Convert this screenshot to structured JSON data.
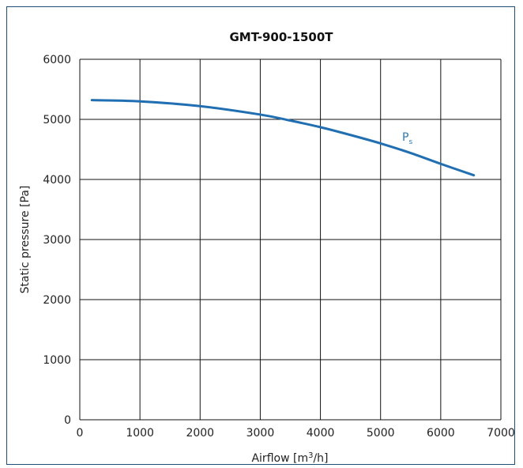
{
  "chart_data": {
    "type": "line",
    "title": "GMT-900-1500T",
    "xlabel": "Airflow [m3/h]",
    "xlabel_parts": [
      "Airflow [m",
      "3",
      "/h]"
    ],
    "ylabel": "Static pressure [Pa]",
    "xlim": [
      0,
      7000
    ],
    "ylim": [
      0,
      6000
    ],
    "x_ticks": [
      "0",
      "1000",
      "2000",
      "3000",
      "4000",
      "5000",
      "6000",
      "7000"
    ],
    "y_ticks": [
      "0",
      "1000",
      "2000",
      "3000",
      "4000",
      "5000",
      "6000"
    ],
    "grid": true,
    "series": [
      {
        "name": "Ps",
        "name_base": "P",
        "name_sub": "s",
        "color": "#1f6fb2",
        "x": [
          200,
          1000,
          2000,
          3000,
          3500,
          4000,
          4500,
          5000,
          5500,
          6000,
          6550
        ],
        "y": [
          5320,
          5300,
          5220,
          5080,
          4980,
          4870,
          4740,
          4600,
          4440,
          4260,
          4070
        ]
      }
    ]
  }
}
